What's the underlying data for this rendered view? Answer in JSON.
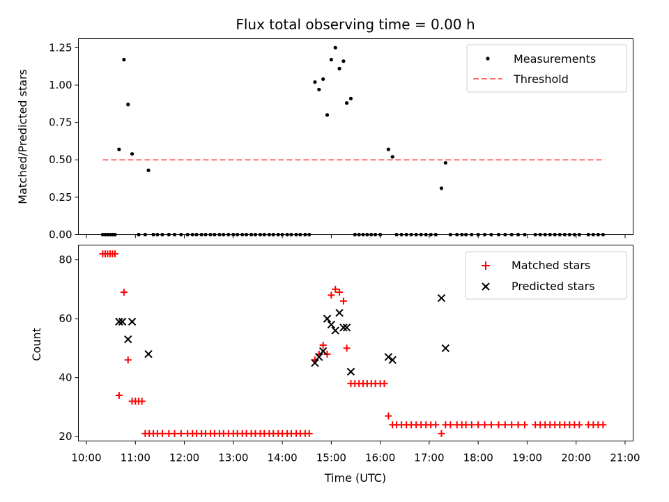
{
  "chart_data": [
    {
      "type": "scatter",
      "title": "Flux total observing time = 0.00 h",
      "xlabel": "",
      "ylabel": "Matched/Predicted stars",
      "xlim": [
        "10:00",
        "21:00"
      ],
      "ylim": [
        0,
        1.31
      ],
      "yticks": [
        "0.00",
        "0.25",
        "0.50",
        "0.75",
        "1.00",
        "1.25"
      ],
      "legend_position": "upper right",
      "series": [
        {
          "name": "Measurements",
          "marker": "dot",
          "color": "#000000",
          "points": [
            [
              "10:20",
              0
            ],
            [
              "10:23",
              0
            ],
            [
              "10:26",
              0
            ],
            [
              "10:29",
              0
            ],
            [
              "10:32",
              0
            ],
            [
              "10:35",
              0
            ],
            [
              "10:40",
              0.57
            ],
            [
              "10:46",
              1.17
            ],
            [
              "10:51",
              0.87
            ],
            [
              "10:56",
              0.54
            ],
            [
              "11:04",
              0
            ],
            [
              "11:12",
              0
            ],
            [
              "11:16",
              0.43
            ],
            [
              "11:22",
              0
            ],
            [
              "11:27",
              0
            ],
            [
              "11:33",
              0
            ],
            [
              "11:41",
              0
            ],
            [
              "11:48",
              0
            ],
            [
              "11:56",
              0
            ],
            [
              "12:04",
              0
            ],
            [
              "12:10",
              0
            ],
            [
              "12:15",
              0
            ],
            [
              "12:21",
              0
            ],
            [
              "12:26",
              0
            ],
            [
              "12:32",
              0
            ],
            [
              "12:37",
              0
            ],
            [
              "12:43",
              0
            ],
            [
              "12:48",
              0
            ],
            [
              "12:54",
              0
            ],
            [
              "13:00",
              0
            ],
            [
              "13:05",
              0
            ],
            [
              "13:11",
              0
            ],
            [
              "13:16",
              0
            ],
            [
              "13:22",
              0
            ],
            [
              "13:27",
              0
            ],
            [
              "13:33",
              0
            ],
            [
              "13:38",
              0
            ],
            [
              "13:44",
              0
            ],
            [
              "13:49",
              0
            ],
            [
              "13:55",
              0
            ],
            [
              "14:00",
              0
            ],
            [
              "14:06",
              0
            ],
            [
              "14:11",
              0
            ],
            [
              "14:17",
              0
            ],
            [
              "14:22",
              0
            ],
            [
              "14:28",
              0
            ],
            [
              "14:33",
              0
            ],
            [
              "14:40",
              1.02
            ],
            [
              "14:45",
              0.97
            ],
            [
              "14:50",
              1.04
            ],
            [
              "14:55",
              0.8
            ],
            [
              "15:00",
              1.17
            ],
            [
              "15:05",
              1.25
            ],
            [
              "15:10",
              1.11
            ],
            [
              "15:15",
              1.16
            ],
            [
              "15:19",
              0.88
            ],
            [
              "15:24",
              0.91
            ],
            [
              "15:29",
              0
            ],
            [
              "15:34",
              0
            ],
            [
              "15:39",
              0
            ],
            [
              "15:44",
              0
            ],
            [
              "15:49",
              0
            ],
            [
              "15:54",
              0
            ],
            [
              "16:00",
              0
            ],
            [
              "16:10",
              0.57
            ],
            [
              "16:15",
              0.52
            ],
            [
              "16:20",
              0
            ],
            [
              "16:26",
              0
            ],
            [
              "16:32",
              0
            ],
            [
              "16:38",
              0
            ],
            [
              "16:44",
              0
            ],
            [
              "16:50",
              0
            ],
            [
              "16:56",
              0
            ],
            [
              "17:02",
              0
            ],
            [
              "17:08",
              0
            ],
            [
              "17:15",
              0.31
            ],
            [
              "17:20",
              0.48
            ],
            [
              "17:26",
              0
            ],
            [
              "17:34",
              0
            ],
            [
              "17:40",
              0
            ],
            [
              "17:45",
              0
            ],
            [
              "17:52",
              0
            ],
            [
              "18:00",
              0
            ],
            [
              "18:08",
              0
            ],
            [
              "18:16",
              0
            ],
            [
              "18:25",
              0
            ],
            [
              "18:33",
              0
            ],
            [
              "18:41",
              0
            ],
            [
              "18:49",
              0
            ],
            [
              "18:57",
              0
            ],
            [
              "19:10",
              0
            ],
            [
              "19:16",
              0
            ],
            [
              "19:22",
              0
            ],
            [
              "19:28",
              0
            ],
            [
              "19:34",
              0
            ],
            [
              "19:40",
              0
            ],
            [
              "19:46",
              0
            ],
            [
              "19:52",
              0
            ],
            [
              "19:58",
              0
            ],
            [
              "20:04",
              0
            ],
            [
              "20:15",
              0
            ],
            [
              "20:21",
              0
            ],
            [
              "20:27",
              0
            ],
            [
              "20:33",
              0
            ]
          ]
        },
        {
          "name": "Threshold",
          "style": "dashed",
          "color": "#ff7070",
          "line": [
            [
              "10:20",
              0.5
            ],
            [
              "20:35",
              0.5
            ]
          ]
        }
      ]
    },
    {
      "type": "scatter",
      "title": "",
      "xlabel": "Time (UTC)",
      "ylabel": "Count",
      "xlim": [
        "10:00",
        "21:00"
      ],
      "ylim": [
        18.5,
        85
      ],
      "yticks": [
        "20",
        "40",
        "60",
        "80"
      ],
      "xticks": [
        "10:00",
        "11:00",
        "12:00",
        "13:00",
        "14:00",
        "15:00",
        "16:00",
        "17:00",
        "18:00",
        "19:00",
        "20:00",
        "21:00"
      ],
      "legend_position": "upper right",
      "series": [
        {
          "name": "Matched stars",
          "marker": "plus",
          "color": "#ff0000",
          "points": [
            [
              "10:20",
              82
            ],
            [
              "10:23",
              82
            ],
            [
              "10:26",
              82
            ],
            [
              "10:29",
              82
            ],
            [
              "10:32",
              82
            ],
            [
              "10:35",
              82
            ],
            [
              "10:40",
              34
            ],
            [
              "10:46",
              69
            ],
            [
              "10:51",
              46
            ],
            [
              "10:56",
              32
            ],
            [
              "11:00",
              32
            ],
            [
              "11:04",
              32
            ],
            [
              "11:08",
              32
            ],
            [
              "11:12",
              21
            ],
            [
              "11:17",
              21
            ],
            [
              "11:22",
              21
            ],
            [
              "11:27",
              21
            ],
            [
              "11:33",
              21
            ],
            [
              "11:41",
              21
            ],
            [
              "11:48",
              21
            ],
            [
              "11:56",
              21
            ],
            [
              "12:04",
              21
            ],
            [
              "12:10",
              21
            ],
            [
              "12:15",
              21
            ],
            [
              "12:21",
              21
            ],
            [
              "12:26",
              21
            ],
            [
              "12:32",
              21
            ],
            [
              "12:37",
              21
            ],
            [
              "12:43",
              21
            ],
            [
              "12:48",
              21
            ],
            [
              "12:54",
              21
            ],
            [
              "13:00",
              21
            ],
            [
              "13:05",
              21
            ],
            [
              "13:11",
              21
            ],
            [
              "13:16",
              21
            ],
            [
              "13:22",
              21
            ],
            [
              "13:27",
              21
            ],
            [
              "13:33",
              21
            ],
            [
              "13:38",
              21
            ],
            [
              "13:44",
              21
            ],
            [
              "13:49",
              21
            ],
            [
              "13:55",
              21
            ],
            [
              "14:00",
              21
            ],
            [
              "14:06",
              21
            ],
            [
              "14:11",
              21
            ],
            [
              "14:17",
              21
            ],
            [
              "14:22",
              21
            ],
            [
              "14:28",
              21
            ],
            [
              "14:33",
              21
            ],
            [
              "14:40",
              46
            ],
            [
              "14:45",
              48
            ],
            [
              "14:50",
              51
            ],
            [
              "14:55",
              48
            ],
            [
              "15:00",
              68
            ],
            [
              "15:05",
              70
            ],
            [
              "15:10",
              69
            ],
            [
              "15:15",
              66
            ],
            [
              "15:19",
              50
            ],
            [
              "15:24",
              38
            ],
            [
              "15:29",
              38
            ],
            [
              "15:34",
              38
            ],
            [
              "15:39",
              38
            ],
            [
              "15:44",
              38
            ],
            [
              "15:49",
              38
            ],
            [
              "15:54",
              38
            ],
            [
              "16:00",
              38
            ],
            [
              "16:05",
              38
            ],
            [
              "16:10",
              27
            ],
            [
              "16:15",
              24
            ],
            [
              "16:20",
              24
            ],
            [
              "16:26",
              24
            ],
            [
              "16:32",
              24
            ],
            [
              "16:38",
              24
            ],
            [
              "16:44",
              24
            ],
            [
              "16:50",
              24
            ],
            [
              "16:56",
              24
            ],
            [
              "17:02",
              24
            ],
            [
              "17:08",
              24
            ],
            [
              "17:15",
              21
            ],
            [
              "17:20",
              24
            ],
            [
              "17:26",
              24
            ],
            [
              "17:34",
              24
            ],
            [
              "17:40",
              24
            ],
            [
              "17:45",
              24
            ],
            [
              "17:52",
              24
            ],
            [
              "18:00",
              24
            ],
            [
              "18:08",
              24
            ],
            [
              "18:16",
              24
            ],
            [
              "18:25",
              24
            ],
            [
              "18:33",
              24
            ],
            [
              "18:41",
              24
            ],
            [
              "18:49",
              24
            ],
            [
              "18:57",
              24
            ],
            [
              "19:10",
              24
            ],
            [
              "19:16",
              24
            ],
            [
              "19:22",
              24
            ],
            [
              "19:28",
              24
            ],
            [
              "19:34",
              24
            ],
            [
              "19:40",
              24
            ],
            [
              "19:46",
              24
            ],
            [
              "19:52",
              24
            ],
            [
              "19:58",
              24
            ],
            [
              "20:04",
              24
            ],
            [
              "20:15",
              24
            ],
            [
              "20:21",
              24
            ],
            [
              "20:27",
              24
            ],
            [
              "20:33",
              24
            ]
          ]
        },
        {
          "name": "Predicted stars",
          "marker": "x",
          "color": "#000000",
          "points": [
            [
              "10:40",
              59
            ],
            [
              "10:44",
              59
            ],
            [
              "10:51",
              53
            ],
            [
              "10:56",
              59
            ],
            [
              "11:16",
              48
            ],
            [
              "14:40",
              45
            ],
            [
              "14:45",
              47
            ],
            [
              "14:50",
              49
            ],
            [
              "14:55",
              60
            ],
            [
              "15:00",
              58
            ],
            [
              "15:05",
              56
            ],
            [
              "15:10",
              62
            ],
            [
              "15:15",
              57
            ],
            [
              "15:19",
              57
            ],
            [
              "15:24",
              42
            ],
            [
              "16:10",
              47
            ],
            [
              "16:15",
              46
            ],
            [
              "17:15",
              67
            ],
            [
              "17:20",
              50
            ]
          ]
        }
      ]
    }
  ]
}
